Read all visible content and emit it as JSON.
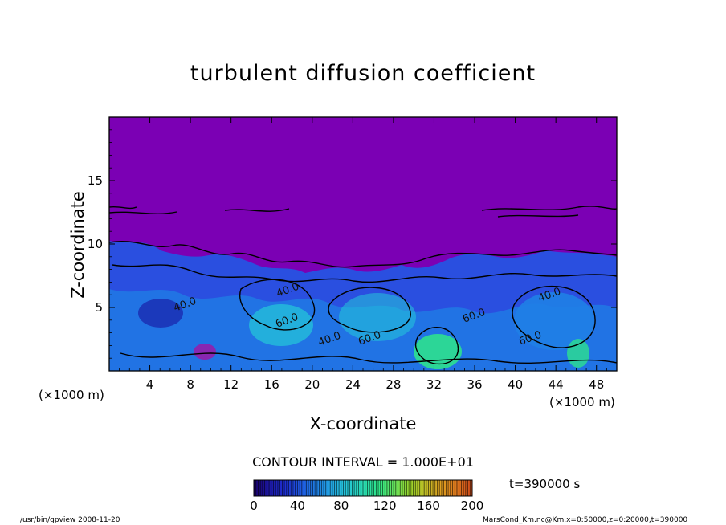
{
  "chart_data": {
    "type": "heatmap",
    "title": "turbulent diffusion coefficient",
    "xlabel": "X-coordinate",
    "ylabel": "Z-coordinate",
    "x_unit_left": "(×1000 m)",
    "x_unit_right": "(×1000 m)",
    "xlim": [
      0,
      50
    ],
    "ylim": [
      0,
      20
    ],
    "x_ticks": [
      4,
      8,
      12,
      16,
      20,
      24,
      28,
      32,
      36,
      40,
      44,
      48
    ],
    "y_ticks": [
      5,
      10,
      15
    ],
    "contour_interval_text": "CONTOUR INTERVAL = 1.000E+01",
    "colorbar": {
      "min": 0,
      "max": 200,
      "ticks": [
        0,
        40,
        80,
        120,
        160,
        200
      ],
      "colors": [
        "#1a006b",
        "#1e2fd6",
        "#1f7fe6",
        "#25c9d8",
        "#2ee88a",
        "#9ad62b",
        "#e0a020",
        "#d24a1a"
      ]
    },
    "background_color": "#7b00b4",
    "contour_labels": [
      "40.0",
      "40.0",
      "60.0",
      "60.0",
      "40.0",
      "40.0",
      "60.0",
      "60.0"
    ],
    "time_label": "t=390000 s"
  },
  "footer": {
    "left": "/usr/bin/gpview   2008-11-20",
    "right": "MarsCond_Km.nc@Km,x=0:50000,z=0:20000,t=390000"
  }
}
